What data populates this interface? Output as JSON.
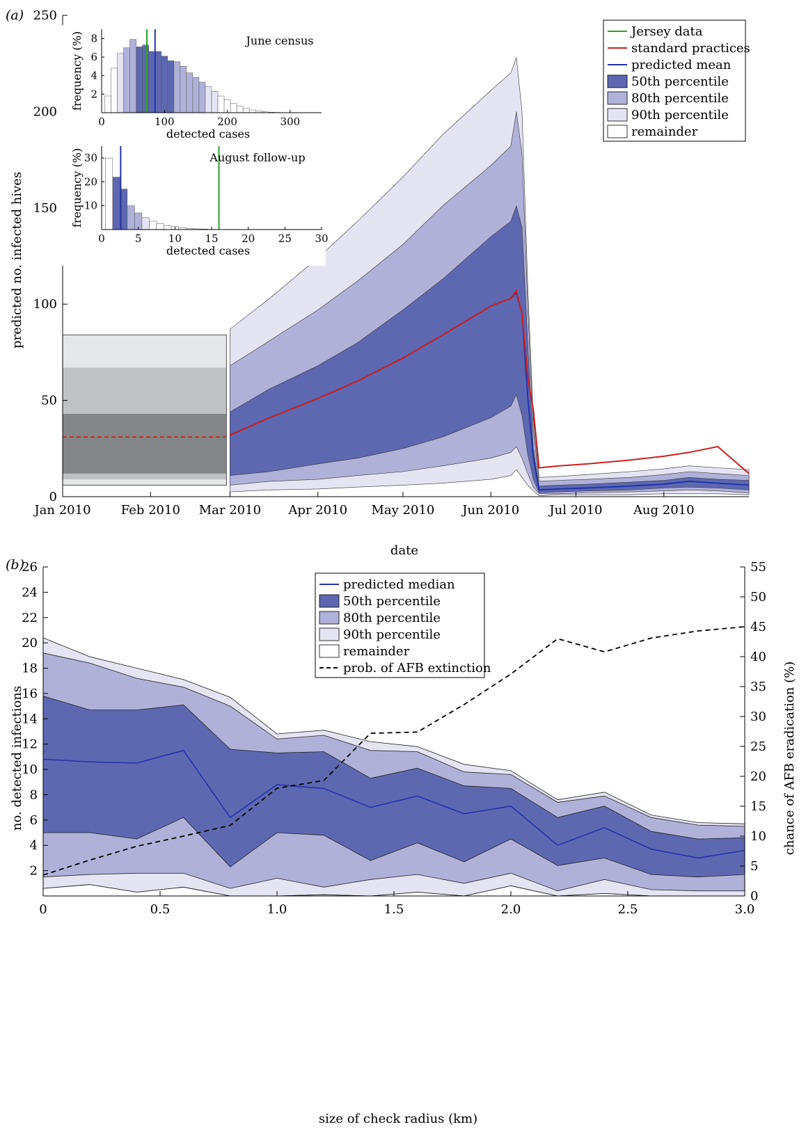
{
  "chart_data": [
    {
      "type": "area",
      "panel_label": "(a)",
      "xlabel": "date",
      "ylabel": "predicted no. infected hives",
      "ylim": [
        0,
        250
      ],
      "yticks": [
        0,
        50,
        100,
        150,
        200,
        250
      ],
      "date_range": [
        "2010-01-01",
        "2010-08-31"
      ],
      "xticks": [
        {
          "date": "2010-01-01",
          "label": "Jan 2010"
        },
        {
          "date": "2010-02-01",
          "label": "Feb 2010"
        },
        {
          "date": "2010-03-01",
          "label": "Mar 2010"
        },
        {
          "date": "2010-04-01",
          "label": "Apr 2010"
        },
        {
          "date": "2010-05-01",
          "label": "May 2010"
        },
        {
          "date": "2010-06-01",
          "label": "Jun 2010"
        },
        {
          "date": "2010-07-01",
          "label": "Jul 2010"
        },
        {
          "date": "2010-08-01",
          "label": "Aug 2010"
        }
      ],
      "legend": {
        "position": "top-right",
        "entries": [
          {
            "label": "Jersey data",
            "kind": "line",
            "color": "#2ca02c"
          },
          {
            "label": "standard practices",
            "kind": "line",
            "color": "#cc1f1f"
          },
          {
            "label": "predicted mean",
            "kind": "line",
            "color": "#2233aa"
          },
          {
            "label": "50th percentile",
            "kind": "box",
            "color": "#5e68b0"
          },
          {
            "label": "80th percentile",
            "kind": "box",
            "color": "#b0b1d8"
          },
          {
            "label": "90th percentile",
            "kind": "box",
            "color": "#e4e4f2"
          },
          {
            "label": "remainder",
            "kind": "box",
            "color": "#ffffff"
          }
        ]
      },
      "initial_box": {
        "date_range": [
          "2010-01-01",
          "2010-03-01"
        ],
        "bands": [
          {
            "y0": 6,
            "y1": 84,
            "color": "#e6e7e8"
          },
          {
            "y0": 9,
            "y1": 67,
            "color": "#c0c1c3"
          },
          {
            "y0": 12,
            "y1": 43,
            "color": "#848587"
          }
        ],
        "median": 31
      },
      "dates": [
        "2010-03-01",
        "2010-03-15",
        "2010-04-01",
        "2010-04-15",
        "2010-05-01",
        "2010-05-15",
        "2010-06-01",
        "2010-06-08",
        "2010-06-10",
        "2010-06-12",
        "2010-06-14",
        "2010-06-16",
        "2010-06-18",
        "2010-06-25",
        "2010-07-05",
        "2010-07-20",
        "2010-08-01",
        "2010-08-10",
        "2010-08-20",
        "2010-08-31"
      ],
      "series": [
        {
          "name": "90th percentile upper",
          "values": [
            87,
            103,
            124,
            143,
            166,
            188,
            211,
            220,
            228,
            200,
            110,
            40,
            10,
            10.5,
            11.5,
            13,
            14.5,
            16,
            15,
            14
          ]
        },
        {
          "name": "80th percentile upper",
          "values": [
            68,
            81,
            97,
            112,
            131,
            151,
            172,
            182,
            200,
            178,
            100,
            35,
            8,
            8.5,
            9,
            10,
            11.5,
            13,
            12,
            11
          ]
        },
        {
          "name": "50th percentile upper",
          "values": [
            44,
            56,
            68,
            80,
            97,
            113,
            135,
            143,
            151,
            140,
            80,
            25,
            5.5,
            6,
            6.5,
            7.5,
            8.5,
            10,
            9,
            8.5
          ]
        },
        {
          "name": "predicted mean",
          "values": [
            32,
            41,
            51,
            60,
            72,
            84,
            99,
            103,
            106,
            95,
            52,
            20,
            3.5,
            4,
            4.5,
            5.5,
            6.5,
            8,
            7,
            6
          ]
        },
        {
          "name": "50th percentile lower",
          "values": [
            11,
            13,
            17,
            20,
            25,
            31,
            41,
            47,
            53,
            42,
            22,
            9,
            2,
            2.5,
            3,
            3.5,
            4.5,
            5,
            4.5,
            3.5
          ]
        },
        {
          "name": "80th percentile lower",
          "values": [
            6,
            8,
            9,
            11,
            13,
            16,
            20,
            23,
            26,
            20,
            12,
            5,
            1.5,
            1.5,
            2,
            2.5,
            3,
            3.5,
            3,
            2
          ]
        },
        {
          "name": "90th percentile lower",
          "values": [
            2.5,
            3.5,
            4,
            5,
            6,
            7,
            9,
            11,
            14,
            10,
            6,
            3,
            0.5,
            1,
            1,
            1,
            1.5,
            1.5,
            1.5,
            1
          ]
        }
      ],
      "standard_practices": {
        "dates": [
          "2010-03-01",
          "2010-03-15",
          "2010-04-01",
          "2010-04-15",
          "2010-05-01",
          "2010-05-15",
          "2010-06-01",
          "2010-06-08",
          "2010-06-10",
          "2010-06-12",
          "2010-06-14",
          "2010-06-16",
          "2010-06-18",
          "2010-06-25",
          "2010-07-05",
          "2010-07-20",
          "2010-08-01",
          "2010-08-10",
          "2010-08-20",
          "2010-08-31"
        ],
        "values": [
          32,
          41,
          51,
          60,
          72,
          84,
          99,
          103,
          107,
          95,
          62,
          45,
          15,
          16,
          17,
          19,
          21,
          23,
          26,
          12
        ]
      },
      "insets": [
        {
          "title": "June census",
          "xlabel": "detected cases",
          "ylabel": "frequency (%)",
          "xlim": [
            0,
            350
          ],
          "ylim": [
            0,
            9
          ],
          "xticks": [
            0,
            100,
            200,
            300
          ],
          "yticks": [
            2,
            4,
            6,
            8
          ],
          "bin_width": 10,
          "bins_start": 10,
          "values": [
            1.8,
            4.8,
            6.4,
            7.0,
            7.9,
            7.1,
            7.3,
            6.6,
            6.6,
            6.1,
            5.6,
            5.5,
            5.0,
            4.3,
            3.8,
            3.3,
            2.8,
            2.3,
            1.8,
            1.4,
            1.0,
            0.7,
            0.5,
            0.3,
            0.2,
            0.1,
            0.05,
            0.03
          ],
          "category": [
            "remainder",
            "remainder",
            "90th percentile",
            "80th percentile",
            "80th percentile",
            "50th percentile",
            "50th percentile",
            "50th percentile",
            "50th percentile",
            "50th percentile",
            "50th percentile",
            "80th percentile",
            "80th percentile",
            "80th percentile",
            "80th percentile",
            "80th percentile",
            "90th percentile",
            "90th percentile",
            "remainder",
            "remainder",
            "remainder",
            "remainder",
            "remainder",
            "remainder",
            "remainder",
            "remainder",
            "remainder",
            "remainder"
          ],
          "jersey_data": 72,
          "predicted_mean": 85
        },
        {
          "title": "August follow-up",
          "xlabel": "detected cases",
          "ylabel": "frequency (%)",
          "xlim": [
            0,
            30
          ],
          "ylim": [
            0,
            35
          ],
          "xticks": [
            0,
            5,
            10,
            15,
            20,
            25,
            30
          ],
          "yticks": [
            10,
            20,
            30
          ],
          "bin_width": 1,
          "bins_start": 1,
          "values": [
            30,
            22,
            17,
            10,
            7,
            5,
            3.5,
            2.5,
            1.7,
            1.2,
            0.8,
            0.5,
            0.3,
            0.2,
            0.1
          ],
          "category": [
            "remainder",
            "50th percentile",
            "50th percentile",
            "80th percentile",
            "80th percentile",
            "90th percentile",
            "remainder",
            "remainder",
            "remainder",
            "remainder",
            "remainder",
            "remainder",
            "remainder",
            "remainder",
            "remainder"
          ],
          "jersey_data": 16,
          "predicted_mean": 2.6
        }
      ]
    },
    {
      "type": "area",
      "panel_label": "(b)",
      "xlabel": "size of check radius (km)",
      "ylabel": "no. detected infections",
      "ylabel_right": "chance of AFB eradication (%)",
      "xlim": [
        0,
        3.0
      ],
      "ylim": [
        0,
        26
      ],
      "ylim_right": [
        0,
        55
      ],
      "xticks": [
        {
          "v": 0,
          "label": "0"
        },
        {
          "v": 0.5,
          "label": "0.5"
        },
        {
          "v": 1.0,
          "label": "1.0"
        },
        {
          "v": 1.5,
          "label": "1.5"
        },
        {
          "v": 2.0,
          "label": "2.0"
        },
        {
          "v": 2.5,
          "label": "2.5"
        },
        {
          "v": 3.0,
          "label": "3.0"
        }
      ],
      "yticks": [
        2,
        4,
        6,
        8,
        10,
        12,
        14,
        16,
        18,
        20,
        22,
        24,
        26
      ],
      "yticks_right": [
        0,
        5,
        10,
        15,
        20,
        25,
        30,
        35,
        40,
        45,
        50,
        55
      ],
      "legend": {
        "position": "top-center",
        "entries": [
          {
            "label": "predicted median",
            "kind": "line",
            "color": "#2233aa"
          },
          {
            "label": "50th percentile",
            "kind": "box",
            "color": "#5e68b0"
          },
          {
            "label": "80th percentile",
            "kind": "box",
            "color": "#b0b1d8"
          },
          {
            "label": "90th percentile",
            "kind": "box",
            "color": "#e4e4f2"
          },
          {
            "label": "remainder",
            "kind": "box",
            "color": "#ffffff"
          },
          {
            "label": "prob. of AFB extinction",
            "kind": "dash",
            "color": "#000000"
          }
        ]
      },
      "x": [
        0,
        0.2,
        0.4,
        0.6,
        0.8,
        1.0,
        1.2,
        1.4,
        1.6,
        1.8,
        2.0,
        2.2,
        2.4,
        2.6,
        2.8,
        3.0
      ],
      "series": [
        {
          "name": "90th percentile upper",
          "values": [
            20.4,
            18.9,
            18.0,
            17.1,
            15.7,
            12.8,
            13.1,
            12.2,
            11.8,
            10.4,
            9.9,
            7.6,
            8.2,
            6.4,
            5.8,
            5.7
          ]
        },
        {
          "name": "80th percentile upper",
          "values": [
            19.2,
            18.4,
            17.2,
            16.5,
            15.0,
            12.4,
            12.7,
            11.5,
            11.4,
            9.8,
            9.6,
            7.4,
            7.9,
            6.2,
            5.6,
            5.5
          ]
        },
        {
          "name": "50th percentile upper",
          "values": [
            15.8,
            14.7,
            14.7,
            15.1,
            11.6,
            11.3,
            11.4,
            9.3,
            10.1,
            8.7,
            8.5,
            6.2,
            7.1,
            5.1,
            4.5,
            4.6
          ]
        },
        {
          "name": "predicted median",
          "values": [
            10.8,
            10.6,
            10.5,
            11.5,
            6.2,
            8.8,
            8.5,
            7.0,
            7.9,
            6.5,
            7.1,
            4.0,
            5.4,
            3.7,
            3.0,
            3.6
          ]
        },
        {
          "name": "50th percentile lower",
          "values": [
            5.0,
            5.0,
            4.5,
            6.2,
            2.3,
            5.0,
            4.8,
            2.8,
            4.2,
            2.7,
            4.5,
            2.4,
            3.0,
            1.7,
            1.5,
            1.7
          ]
        },
        {
          "name": "80th percentile lower",
          "values": [
            1.5,
            1.7,
            1.8,
            1.8,
            0.6,
            1.4,
            0.7,
            1.3,
            1.7,
            1.0,
            1.8,
            0.4,
            1.3,
            0.5,
            0.4,
            0.4
          ]
        },
        {
          "name": "90th percentile lower",
          "values": [
            0.6,
            0.9,
            0.3,
            0.7,
            0,
            0,
            0.1,
            0,
            0.3,
            0,
            0.8,
            0,
            0.2,
            0,
            0,
            0
          ]
        }
      ],
      "extinction_probability": [
        3.5,
        6.0,
        8.3,
        10.0,
        11.8,
        18.0,
        19.3,
        27.2,
        27.4,
        32.0,
        37.1,
        43.0,
        40.8,
        43.1,
        44.3,
        45.0
      ]
    }
  ]
}
